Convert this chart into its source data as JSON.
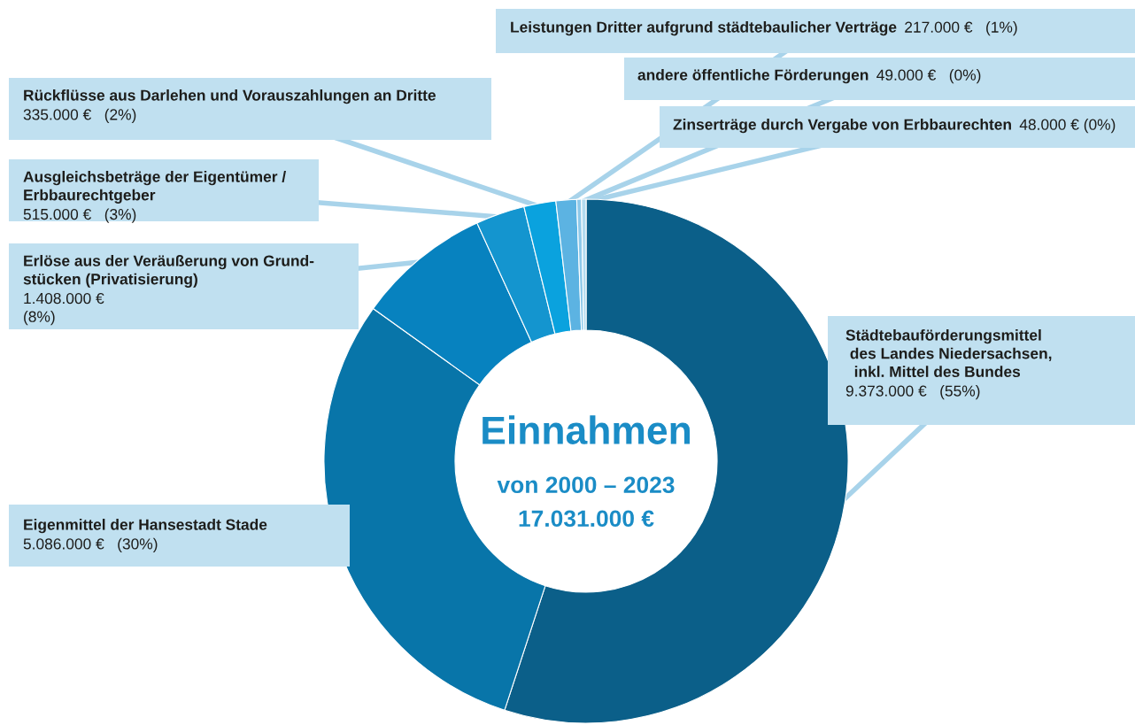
{
  "chart_data": {
    "type": "donut",
    "title": "Einnahmen",
    "subtitle": "von 2000 – 2023",
    "annotations": [
      "17.031.000 €"
    ],
    "categories": [
      "Städtebauförderungsmittel\n des Landes Niedersachsen,\n  inkl. Mittel des Bundes",
      "Eigenmittel der Hansestadt Stade",
      "Erlöse aus der Veräußerung von Grund-\nstücken (Privatisierung)",
      "Ausgleichsbeträge der Eigentümer /\nErbbaurechtgeber",
      "Rückflüsse aus Darlehen und Vorauszahlungen an Dritte",
      "Leistungen Dritter aufgrund städtebaulicher Verträge",
      "andere öffentliche Förderungen",
      "Zinserträge durch Vergabe von Erbbaurechten"
    ],
    "values": [
      9373000,
      5086000,
      1408000,
      515000,
      335000,
      217000,
      49000,
      48000
    ],
    "colors": [
      "#0b5f89",
      "#0875a9",
      "#0782bf",
      "#1495cf",
      "#0aa2de",
      "#5cb3e2",
      "#8ec9ea",
      "#b3dbef"
    ],
    "value_labels": [
      "9.373.000 €   (55%)",
      "5.086.000 €   (30%)",
      "1.408.000 €\n(8%)",
      "515.000 €   (3%)",
      "335.000 €   (2%)",
      "217.000 €   (1%)",
      "49.000 €   (0%)",
      "48.000 € (0%)"
    ]
  }
}
